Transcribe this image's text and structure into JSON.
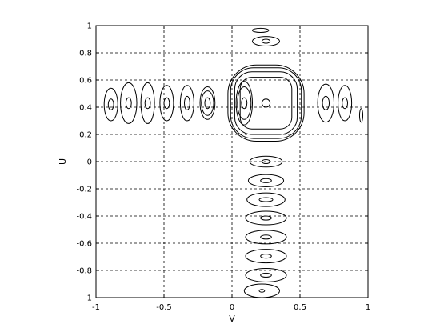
{
  "chart_data": {
    "type": "contour",
    "title": "",
    "xlabel": "V",
    "ylabel": "U",
    "xlim": [
      -1,
      1
    ],
    "ylim": [
      -1,
      1
    ],
    "xticks": [
      -1,
      -0.5,
      0,
      0.5,
      1
    ],
    "xtick_labels": [
      "-1",
      "-0.5",
      "0",
      "0.5",
      "1"
    ],
    "yticks": [
      1,
      0.8,
      0.6,
      0.4,
      0.2,
      0,
      -0.2,
      -0.4,
      -0.6,
      -0.8,
      -1
    ],
    "ytick_labels": [
      "1",
      "0.8",
      "0.6",
      "0.4",
      "0.2",
      "0",
      "-0.2",
      "-0.4",
      "-0.6",
      "-0.8",
      "-1"
    ],
    "grid": true,
    "grid_style": "dashed",
    "line_color": "#000000",
    "contour_groups": [
      {
        "name": "central-peak",
        "cx": 0.25,
        "cy": 0.43,
        "shape": "square",
        "rings": [
          [
            0.03,
            0.03
          ],
          [
            0.19,
            0.19
          ],
          [
            0.23,
            0.23
          ],
          [
            0.26,
            0.26
          ],
          [
            0.28,
            0.28
          ]
        ]
      },
      {
        "name": "left-lobe-1",
        "cx": 0.09,
        "cy": 0.43,
        "rings": [
          [
            0.02,
            0.04
          ],
          [
            0.05,
            0.12
          ],
          [
            0.06,
            0.16
          ]
        ]
      },
      {
        "name": "left-lobe-2",
        "cx": -0.18,
        "cy": 0.43,
        "rings": [
          [
            0.02,
            0.04
          ],
          [
            0.045,
            0.09
          ],
          [
            0.055,
            0.12
          ]
        ]
      },
      {
        "name": "left-lobe-3",
        "cx": -0.33,
        "cy": 0.43,
        "rings": [
          [
            0.02,
            0.05
          ],
          [
            0.05,
            0.13
          ]
        ]
      },
      {
        "name": "left-lobe-4",
        "cx": -0.48,
        "cy": 0.43,
        "rings": [
          [
            0.02,
            0.04
          ],
          [
            0.05,
            0.13
          ]
        ]
      },
      {
        "name": "left-lobe-5",
        "cx": -0.62,
        "cy": 0.43,
        "rings": [
          [
            0.02,
            0.04
          ],
          [
            0.05,
            0.15
          ]
        ]
      },
      {
        "name": "left-lobe-6",
        "cx": -0.76,
        "cy": 0.43,
        "rings": [
          [
            0.02,
            0.04
          ],
          [
            0.06,
            0.15
          ]
        ]
      },
      {
        "name": "left-lobe-7",
        "cx": -0.89,
        "cy": 0.42,
        "rings": [
          [
            0.02,
            0.04
          ],
          [
            0.05,
            0.12
          ]
        ]
      },
      {
        "name": "right-lobe-1",
        "cx": 0.69,
        "cy": 0.43,
        "rings": [
          [
            0.025,
            0.05
          ],
          [
            0.06,
            0.14
          ]
        ]
      },
      {
        "name": "right-lobe-2",
        "cx": 0.83,
        "cy": 0.43,
        "rings": [
          [
            0.02,
            0.04
          ],
          [
            0.05,
            0.13
          ]
        ]
      },
      {
        "name": "right-lobe-3",
        "cx": 0.95,
        "cy": 0.34,
        "rings": [
          [
            0.012,
            0.05
          ]
        ]
      },
      {
        "name": "top-lobe-1",
        "cx": 0.25,
        "cy": 0.885,
        "rings": [
          [
            0.03,
            0.015
          ],
          [
            0.1,
            0.035
          ]
        ]
      },
      {
        "name": "top-lobe-2",
        "cx": 0.21,
        "cy": 0.965,
        "rings": [
          [
            0.06,
            0.015
          ]
        ]
      },
      {
        "name": "bottom-lobe-1",
        "cx": 0.25,
        "cy": 0.0,
        "rings": [
          [
            0.03,
            0.015
          ],
          [
            0.12,
            0.04
          ]
        ]
      },
      {
        "name": "bottom-lobe-2",
        "cx": 0.25,
        "cy": -0.14,
        "rings": [
          [
            0.04,
            0.015
          ],
          [
            0.13,
            0.045
          ]
        ]
      },
      {
        "name": "bottom-lobe-3",
        "cx": 0.25,
        "cy": -0.28,
        "rings": [
          [
            0.05,
            0.015
          ],
          [
            0.14,
            0.05
          ]
        ]
      },
      {
        "name": "bottom-lobe-4",
        "cx": 0.25,
        "cy": -0.415,
        "rings": [
          [
            0.04,
            0.015
          ],
          [
            0.15,
            0.05
          ]
        ]
      },
      {
        "name": "bottom-lobe-5",
        "cx": 0.25,
        "cy": -0.555,
        "rings": [
          [
            0.04,
            0.015
          ],
          [
            0.15,
            0.05
          ]
        ]
      },
      {
        "name": "bottom-lobe-6",
        "cx": 0.25,
        "cy": -0.695,
        "rings": [
          [
            0.04,
            0.015
          ],
          [
            0.15,
            0.05
          ]
        ]
      },
      {
        "name": "bottom-lobe-7",
        "cx": 0.25,
        "cy": -0.835,
        "rings": [
          [
            0.04,
            0.015
          ],
          [
            0.15,
            0.05
          ]
        ]
      },
      {
        "name": "bottom-lobe-8",
        "cx": 0.22,
        "cy": -0.95,
        "rings": [
          [
            0.02,
            0.01
          ],
          [
            0.13,
            0.05
          ]
        ]
      }
    ]
  }
}
